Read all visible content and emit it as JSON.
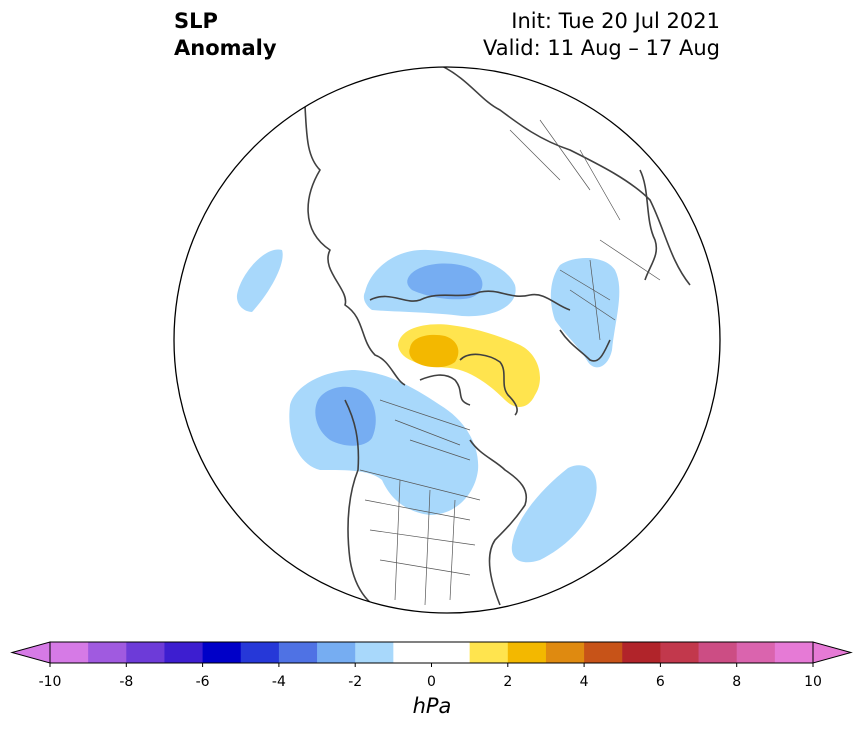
{
  "title": {
    "line1": "SLP",
    "line2": "Anomaly"
  },
  "subtitle": {
    "init": "Init: Tue 20 Jul 2021",
    "valid": "Valid: 11 Aug – 17 Aug"
  },
  "colorbar": {
    "unit": "hPa",
    "min": -10,
    "max": 10,
    "step": 1,
    "ticks": [
      -10,
      -8,
      -6,
      -4,
      -2,
      0,
      2,
      4,
      6,
      8,
      10
    ],
    "tick_labels": [
      "-10",
      "-8",
      "-6",
      "-4",
      "-2",
      "0",
      "2",
      "4",
      "6",
      "8",
      "10"
    ],
    "colors": [
      "#d67ae6",
      "#a05ae0",
      "#6d3bd8",
      "#3d1ed0",
      "#0000c8",
      "#2638d8",
      "#4f72e4",
      "#76adf2",
      "#a8d8fb",
      "#ffffff",
      "#ffffff",
      "#ffe44e",
      "#f3b800",
      "#df8a10",
      "#c75318",
      "#b1242a",
      "#c2384c",
      "#cc4d84",
      "#da64ae",
      "#e67ad6"
    ],
    "extend": "both"
  },
  "map": {
    "projection": "north-polar-stereographic",
    "colors": {
      "light_blue": "#a8d8fb",
      "mid_blue": "#76adf2",
      "light_yellow": "#ffe44e",
      "dark_yellow": "#f3b800",
      "coast": "#404040"
    }
  }
}
